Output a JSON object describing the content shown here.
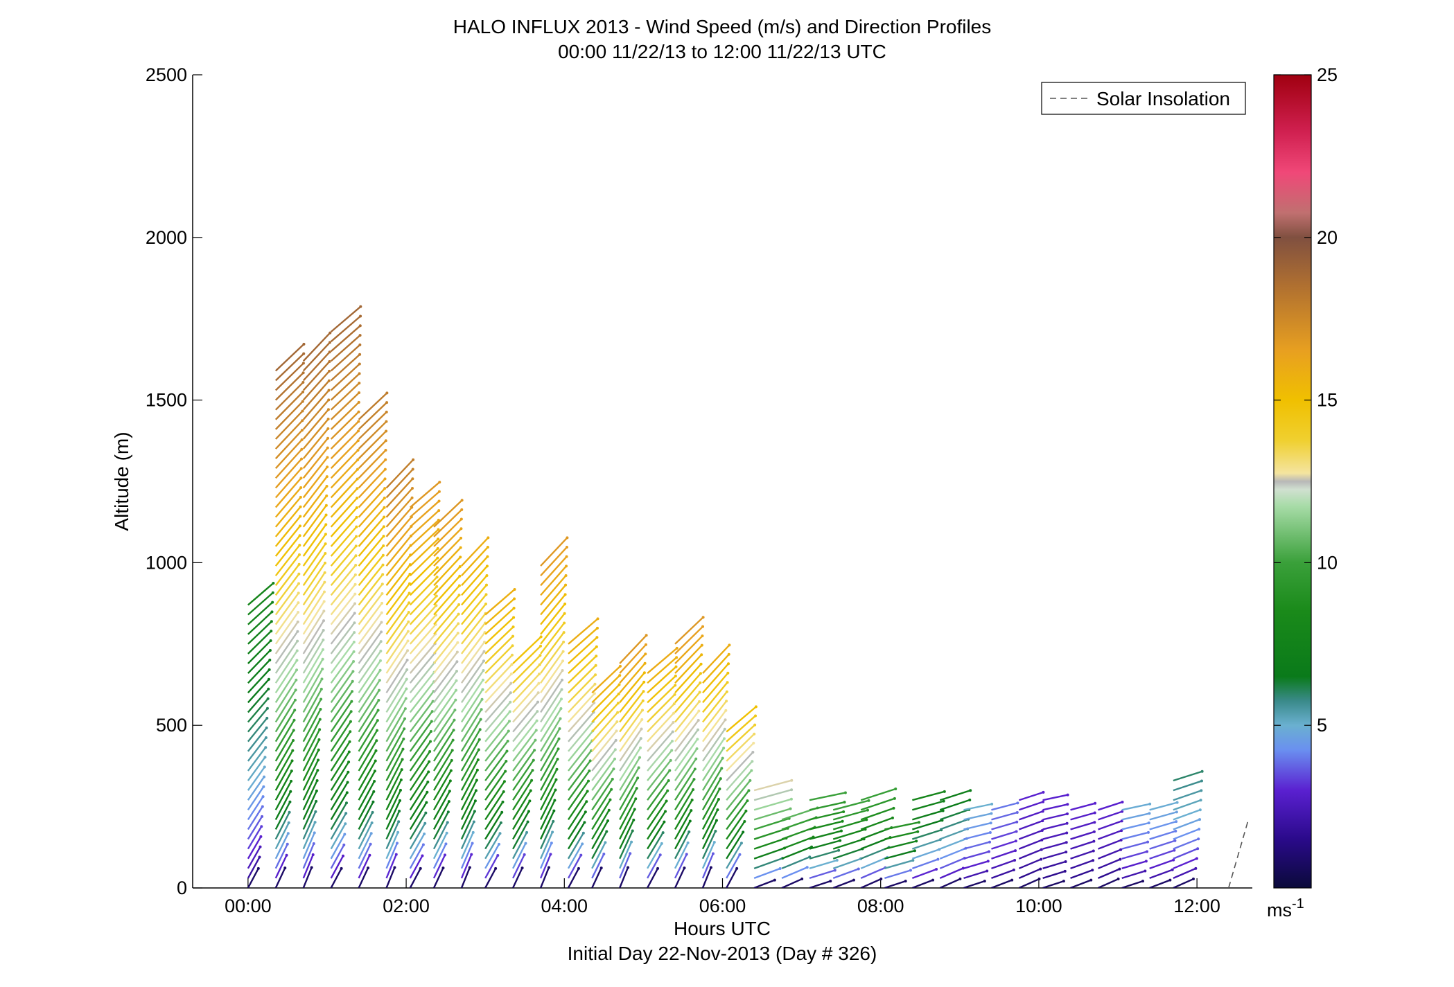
{
  "chart_data": {
    "type": "scatter",
    "title": "HALO INFLUX 2013 - Wind Speed (m/s) and Direction Profiles",
    "subtitle": "00:00 11/22/13 to 12:00 11/22/13  UTC",
    "xlabel": "Hours UTC",
    "xlabel2": "Initial Day 22-Nov-2013 (Day # 326)",
    "ylabel": "Altitude (m)",
    "xlim": [
      -0.7,
      12.7
    ],
    "ylim": [
      0,
      2500
    ],
    "x_ticks": [
      0,
      2,
      4,
      6,
      8,
      10,
      12
    ],
    "x_tick_labels": [
      "00:00",
      "02:00",
      "04:00",
      "06:00",
      "08:00",
      "10:00",
      "12:00"
    ],
    "y_ticks": [
      0,
      500,
      1000,
      1500,
      2000,
      2500
    ],
    "y_tick_labels": [
      "0",
      "500",
      "1000",
      "1500",
      "2000",
      "2500"
    ],
    "colorbar": {
      "range": [
        0,
        25
      ],
      "ticks": [
        5,
        10,
        15,
        20,
        25
      ],
      "tick_labels": [
        "5",
        "10",
        "15",
        "20",
        "25"
      ],
      "unit_label": "ms",
      "unit_exponent": "-1"
    },
    "legend": {
      "position": "top-right",
      "entries": [
        "Solar Insolation"
      ]
    },
    "solar_insolation": {
      "x": [
        12.4,
        12.65
      ],
      "y": [
        0,
        210
      ]
    },
    "profiles": [
      {
        "t": 0.0,
        "top": 890,
        "spd_top": 8
      },
      {
        "t": 0.35,
        "top": 1600,
        "spd_top": 19
      },
      {
        "t": 0.7,
        "top": 1640,
        "spd_top": 19
      },
      {
        "t": 1.05,
        "top": 1720,
        "spd_top": 19
      },
      {
        "t": 1.4,
        "top": 1440,
        "spd_top": 18
      },
      {
        "t": 1.75,
        "top": 1240,
        "spd_top": 18
      },
      {
        "t": 2.05,
        "top": 1190,
        "spd_top": 17
      },
      {
        "t": 2.35,
        "top": 1120,
        "spd_top": 17
      },
      {
        "t": 2.7,
        "top": 1010,
        "spd_top": 16
      },
      {
        "t": 3.0,
        "top": 860,
        "spd_top": 16
      },
      {
        "t": 3.35,
        "top": 700,
        "spd_top": 15
      },
      {
        "t": 3.7,
        "top": 1010,
        "spd_top": 17
      },
      {
        "t": 4.05,
        "top": 760,
        "spd_top": 16
      },
      {
        "t": 4.35,
        "top": 600,
        "spd_top": 16
      },
      {
        "t": 4.7,
        "top": 700,
        "spd_top": 17
      },
      {
        "t": 5.05,
        "top": 660,
        "spd_top": 16
      },
      {
        "t": 5.4,
        "top": 760,
        "spd_top": 17
      },
      {
        "t": 5.75,
        "top": 670,
        "spd_top": 16
      },
      {
        "t": 6.05,
        "top": 480,
        "spd_top": 15
      },
      {
        "t": 6.4,
        "top": 310,
        "spd_top": 13
      },
      {
        "t": 6.75,
        "top": 230,
        "spd_top": 11
      },
      {
        "t": 7.1,
        "top": 270,
        "spd_top": 10
      },
      {
        "t": 7.4,
        "top": 240,
        "spd_top": 10
      },
      {
        "t": 7.75,
        "top": 280,
        "spd_top": 10
      },
      {
        "t": 8.05,
        "top": 180,
        "spd_top": 9
      },
      {
        "t": 8.4,
        "top": 280,
        "spd_top": 8
      },
      {
        "t": 8.75,
        "top": 270,
        "spd_top": 7
      },
      {
        "t": 9.05,
        "top": 240,
        "spd_top": 5
      },
      {
        "t": 9.4,
        "top": 240,
        "spd_top": 4
      },
      {
        "t": 9.75,
        "top": 280,
        "spd_top": 3
      },
      {
        "t": 10.05,
        "top": 280,
        "spd_top": 3
      },
      {
        "t": 10.4,
        "top": 250,
        "spd_top": 3
      },
      {
        "t": 10.75,
        "top": 250,
        "spd_top": 3
      },
      {
        "t": 11.05,
        "top": 250,
        "spd_top": 5
      },
      {
        "t": 11.4,
        "top": 250,
        "spd_top": 5
      },
      {
        "t": 11.7,
        "top": 330,
        "spd_top": 6
      }
    ]
  }
}
